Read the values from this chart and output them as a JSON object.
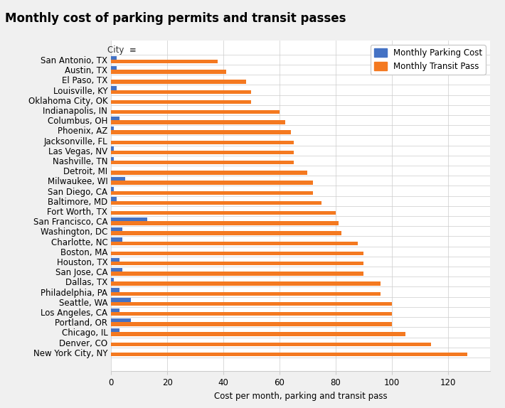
{
  "title": "Monthly cost of parking permits and transit passes",
  "xlabel": "Cost per month, parking and transit pass",
  "cities": [
    "San Antonio, TX",
    "Austin, TX",
    "El Paso, TX",
    "Louisville, KY",
    "Oklahoma City, OK",
    "Indianapolis, IN",
    "Columbus, OH",
    "Phoenix, AZ",
    "Jacksonville, FL",
    "Las Vegas, NV",
    "Nashville, TN",
    "Detroit, MI",
    "Milwaukee, WI",
    "San Diego, CA",
    "Baltimore, MD",
    "Fort Worth, TX",
    "San Francisco, CA",
    "Washington, DC",
    "Charlotte, NC",
    "Boston, MA",
    "Houston, TX",
    "San Jose, CA",
    "Dallas, TX",
    "Philadelphia, PA",
    "Seattle, WA",
    "Los Angeles, CA",
    "Portland, OR",
    "Chicago, IL",
    "Denver, CO",
    "New York City, NY"
  ],
  "parking_cost": [
    2,
    2,
    0,
    2,
    0,
    0,
    3,
    1,
    0,
    1,
    1,
    0,
    5,
    1,
    2,
    0,
    13,
    4,
    4,
    0,
    3,
    4,
    1,
    3,
    7,
    3,
    7,
    3,
    0,
    0
  ],
  "transit_cost": [
    38,
    41,
    48,
    50,
    50,
    60,
    62,
    64,
    65,
    65,
    65,
    70,
    72,
    72,
    75,
    80,
    81,
    82,
    88,
    90,
    90,
    90,
    96,
    96,
    100,
    100,
    100,
    105,
    114,
    127
  ],
  "parking_color": "#4472c4",
  "transit_color": "#f47920",
  "background_color": "#f0f0f0",
  "plot_background": "#ffffff",
  "xlim": [
    0,
    135
  ],
  "title_fontsize": 12,
  "axis_fontsize": 8.5,
  "legend_parking": "Monthly Parking Cost",
  "legend_transit": "Monthly Transit Pass",
  "city_header": "City",
  "sort_icon": "≡"
}
